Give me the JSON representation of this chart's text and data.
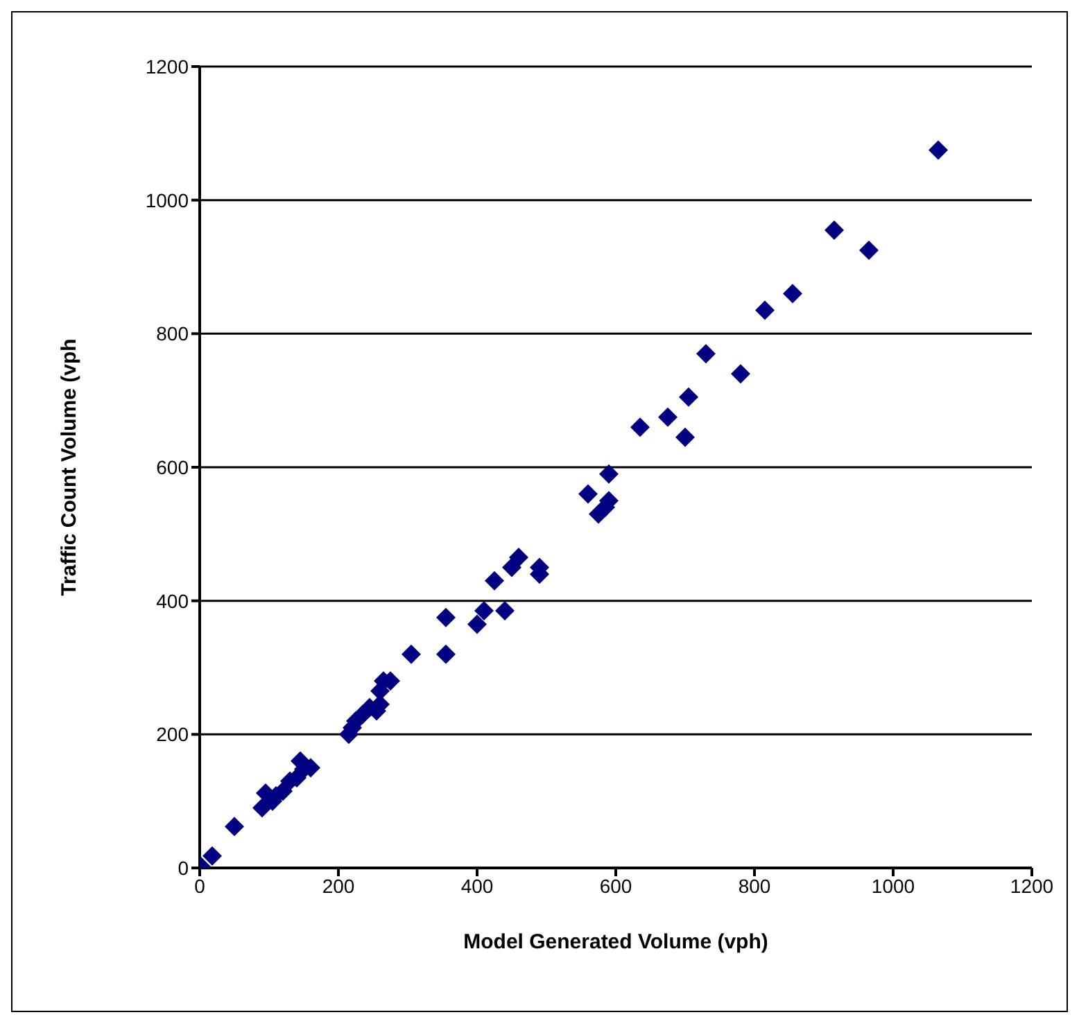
{
  "chart_data": {
    "type": "scatter",
    "xlabel": "Model Generated Volume (vph)",
    "ylabel": "Traffic Count Volume (vph",
    "xlim": [
      0,
      1200
    ],
    "ylim": [
      0,
      1200
    ],
    "xticks": [
      0,
      200,
      400,
      600,
      800,
      1000,
      1200
    ],
    "yticks": [
      0,
      200,
      400,
      600,
      800,
      1000,
      1200
    ],
    "grid": "y",
    "marker": "diamond",
    "legend": false,
    "series": [
      {
        "color": "#000080",
        "x": [
          2,
          18,
          50,
          90,
          95,
          105,
          110,
          120,
          130,
          140,
          145,
          150,
          160,
          215,
          220,
          225,
          235,
          245,
          255,
          260,
          260,
          265,
          275,
          305,
          355,
          355,
          400,
          410,
          425,
          440,
          450,
          460,
          490,
          490,
          560,
          575,
          585,
          590,
          590,
          635,
          675,
          700,
          705,
          730,
          780,
          815,
          855,
          915,
          965,
          1065
        ],
        "values": [
          2,
          18,
          62,
          90,
          112,
          100,
          108,
          115,
          130,
          135,
          160,
          148,
          150,
          200,
          210,
          220,
          230,
          240,
          235,
          245,
          265,
          280,
          280,
          320,
          320,
          375,
          365,
          385,
          430,
          385,
          450,
          465,
          450,
          440,
          560,
          530,
          540,
          550,
          590,
          660,
          675,
          645,
          705,
          770,
          740,
          835,
          860,
          955,
          925,
          1075
        ]
      }
    ]
  }
}
